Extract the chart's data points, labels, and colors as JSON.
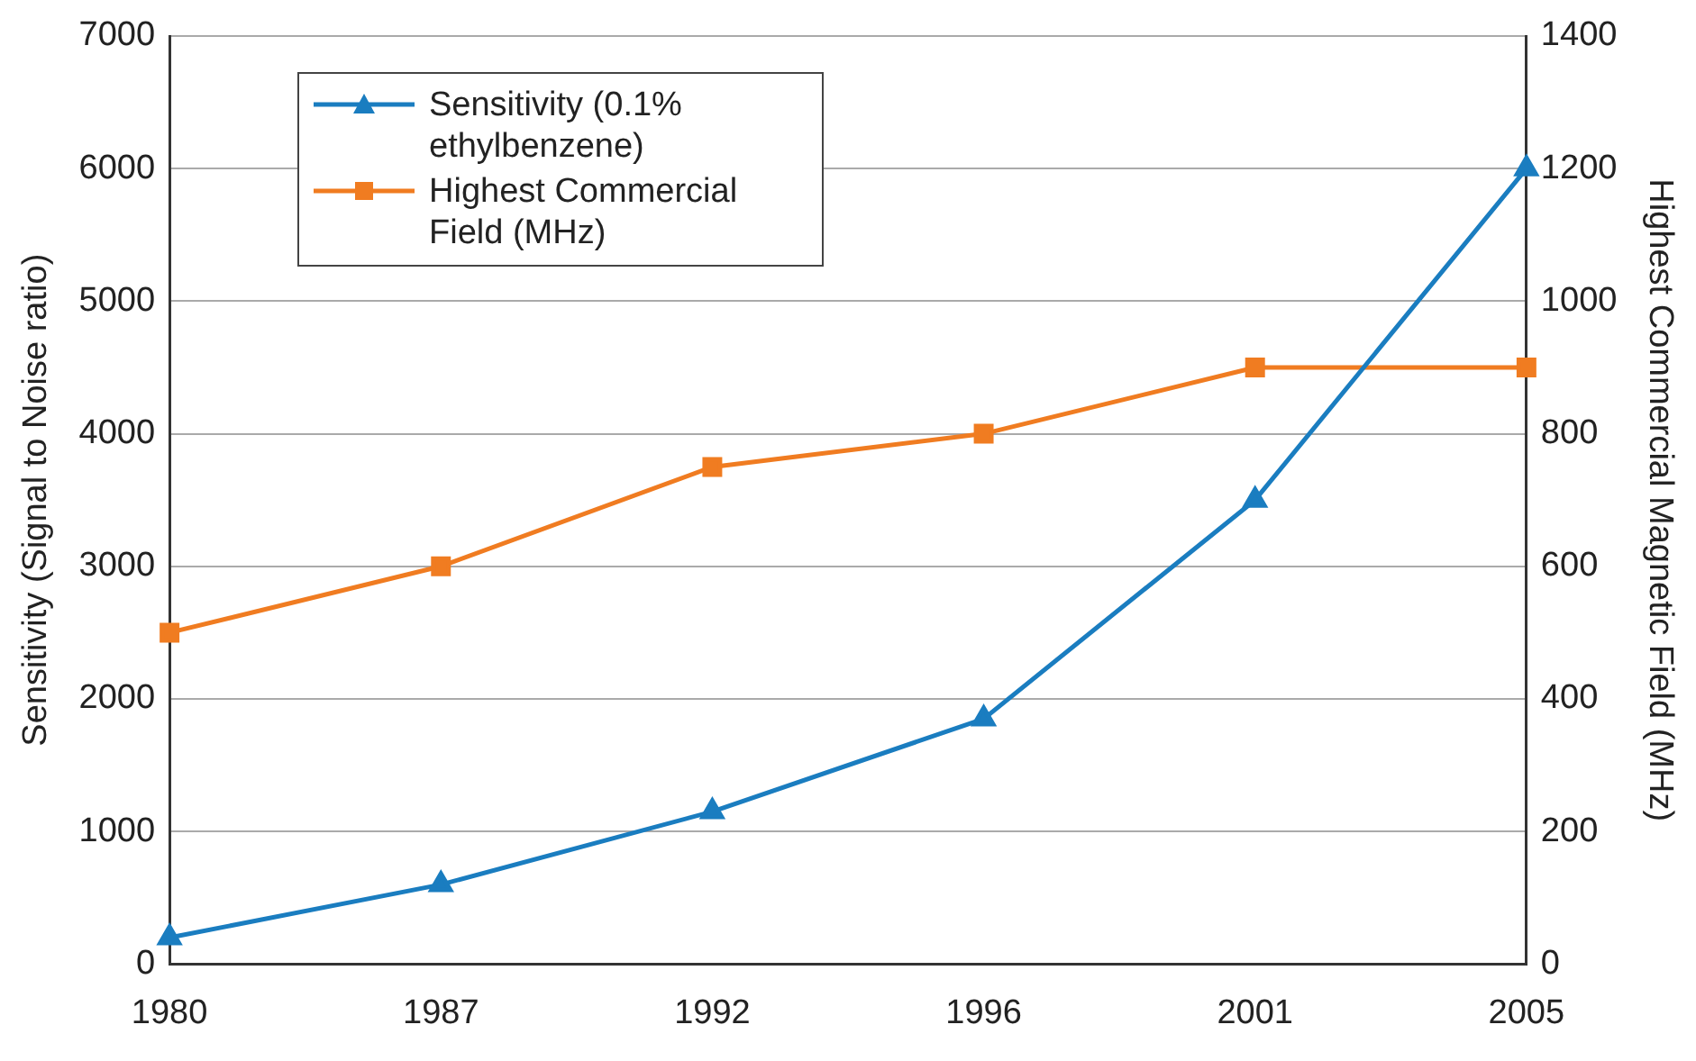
{
  "chart_data": {
    "type": "line",
    "categories": [
      "1980",
      "1987",
      "1992",
      "1996",
      "2001",
      "2005"
    ],
    "ylabel": "Sensitivity (Signal to Noise ratio)",
    "y2label": "Highest Commercial Magnetic Field (MHz)",
    "ylim": [
      0,
      7000
    ],
    "yticks": [
      0,
      1000,
      2000,
      3000,
      4000,
      5000,
      6000,
      7000
    ],
    "y2lim": [
      0,
      1400
    ],
    "y2ticks": [
      0,
      200,
      400,
      600,
      800,
      1000,
      1200,
      1400
    ],
    "grid": "y",
    "legend": "top left",
    "series": [
      {
        "name": "Sensitivity (0.1% ethylbenzene)",
        "color": "#1a7dc0",
        "marker": "triangle",
        "values": [
          200,
          600,
          1150,
          1850,
          3500,
          6000
        ]
      },
      {
        "name": "Highest Commercial Field (MHz)",
        "color": "#f07c21",
        "marker": "square",
        "axis": "y2",
        "values": [
          500,
          600,
          750,
          800,
          900,
          900
        ]
      }
    ]
  }
}
